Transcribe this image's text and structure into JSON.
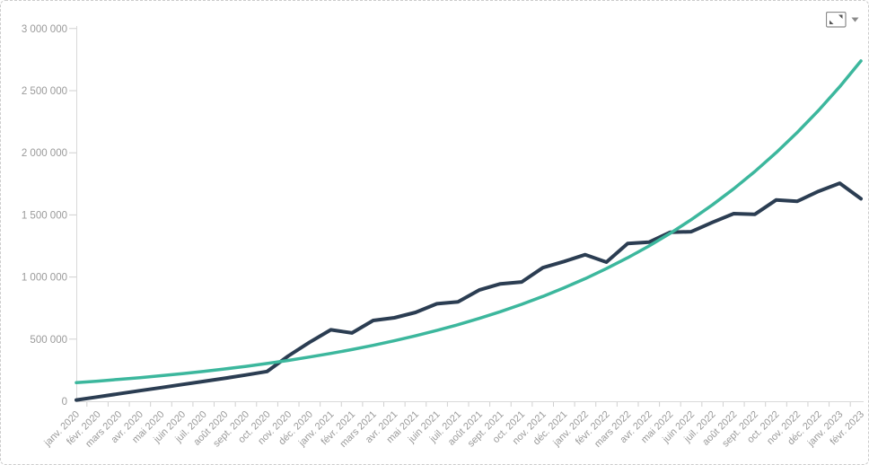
{
  "export_menu": {
    "expand_icon": "expand-icon",
    "caret_icon": "dropdown-caret-icon",
    "icon_color": "#8a8a8a",
    "arrow_color": "#555555"
  },
  "chart_data": {
    "type": "line",
    "title": "",
    "xlabel": "",
    "ylabel": "",
    "legend": false,
    "grid": false,
    "ylim": [
      0,
      3000000
    ],
    "ytick_step": 500000,
    "ytick_labels": [
      "0",
      "500 000",
      "1 000 000",
      "1 500 000",
      "2 000 000",
      "2 500 000",
      "3 000 000"
    ],
    "categories": [
      "janv. 2020",
      "févr. 2020",
      "mars 2020",
      "avr. 2020",
      "mai 2020",
      "juin 2020",
      "juil. 2020",
      "août 2020",
      "sept. 2020",
      "oct. 2020",
      "nov. 2020",
      "déc. 2020",
      "janv. 2021",
      "févr. 2021",
      "mars 2021",
      "avr. 2021",
      "mai 2021",
      "juin 2021",
      "juil. 2021",
      "août 2021",
      "sept. 2021",
      "oct. 2021",
      "nov. 2021",
      "déc. 2021",
      "janv. 2022",
      "févr. 2022",
      "mars 2022",
      "avr. 2022",
      "mai 2022",
      "juin 2022",
      "juil. 2022",
      "août 2022",
      "sept. 2022",
      "oct. 2022",
      "nov. 2022",
      "déc. 2022",
      "janv. 2023",
      "févr. 2023"
    ],
    "series": [
      {
        "name": "dark-line",
        "color": "#2b3d52",
        "stroke_width": 4,
        "values": [
          10000,
          35000,
          60000,
          85000,
          110000,
          135000,
          160000,
          185000,
          212000,
          240000,
          365000,
          475000,
          575000,
          550000,
          650000,
          672000,
          715000,
          785000,
          800000,
          895000,
          945000,
          960000,
          1075000,
          1125000,
          1180000,
          1120000,
          1270000,
          1280000,
          1360000,
          1365000,
          1440000,
          1510000,
          1505000,
          1620000,
          1610000,
          1690000,
          1755000,
          1630000
        ]
      },
      {
        "name": "teal-curve",
        "color": "#3cb79d",
        "stroke_width": 3.5,
        "values": [
          150000,
          162000,
          176000,
          190000,
          206000,
          222000,
          240000,
          260000,
          281000,
          304000,
          329000,
          356000,
          385000,
          416000,
          450000,
          487000,
          527000,
          570000,
          616000,
          667000,
          721000,
          780000,
          844000,
          913000,
          987000,
          1068000,
          1155000,
          1249000,
          1351000,
          1462000,
          1581000,
          1710000,
          1850000,
          2001000,
          2164000,
          2341000,
          2532000,
          2739000
        ]
      }
    ]
  }
}
